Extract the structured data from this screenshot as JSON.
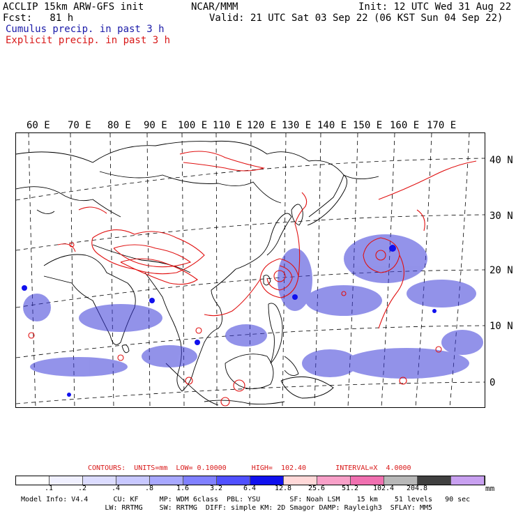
{
  "header": {
    "line1_left": "ACCLIP 15km ARW-GFS init",
    "line1_mid": "NCAR/MMM",
    "line1_right": "Init: 12 UTC Wed 31 Aug 22",
    "line2_left": "Fcst:   81 h",
    "line2_right": "Valid: 21 UTC Sat 03 Sep 22 (06 KST Sun 04 Sep 22)",
    "legend_cumulus": "Cumulus precip. in past 3 h",
    "legend_explicit": "Explicit precip. in past 3 h"
  },
  "map": {
    "lon_labels": [
      "60 E",
      "70 E",
      "80 E",
      "90 E",
      "100 E",
      "110 E",
      "120 E",
      "130 E",
      "140 E",
      "150 E",
      "160 E",
      "170 E"
    ],
    "lat_labels": [
      "40 N",
      "30 N",
      "20 N",
      "10 N",
      "0"
    ],
    "cumulus_color": "#3a3ad8",
    "explicit_color": "#e01010",
    "coast_color": "#000000",
    "grid_color": "#000000"
  },
  "contours": {
    "label": "CONTOURS:  UNITS=mm  LOW= 0.10000      HIGH=  102.40       INTERVAL=X  4.0000"
  },
  "colorbar": {
    "colors": [
      "#ffffff",
      "#f0f0ff",
      "#dcdcff",
      "#c8c8ff",
      "#a8a8ff",
      "#8080ff",
      "#5050ff",
      "#1010ee",
      "#ffd8d8",
      "#f8a0c8",
      "#f070b0",
      "#b8b8b8",
      "#404040",
      "#c8a0f0"
    ],
    "labels": [
      ".1",
      ".2",
      ".4",
      ".8",
      "1.6",
      "3.2",
      "6.4",
      "12.8",
      "25.6",
      "51.2",
      "102.4",
      "204.8"
    ],
    "units": "mm"
  },
  "model_info": {
    "line1": "Model Info: V4.4      CU: KF     MP: WDM 6class  PBL: YSU       SF: Noah LSM    15 km    51 levels   90 sec",
    "line2": "                    LW: RRTMG    SW: RRTMG  DIFF: simple KM: 2D Smagor DAMP: Rayleigh3  SFLAY: MM5"
  }
}
